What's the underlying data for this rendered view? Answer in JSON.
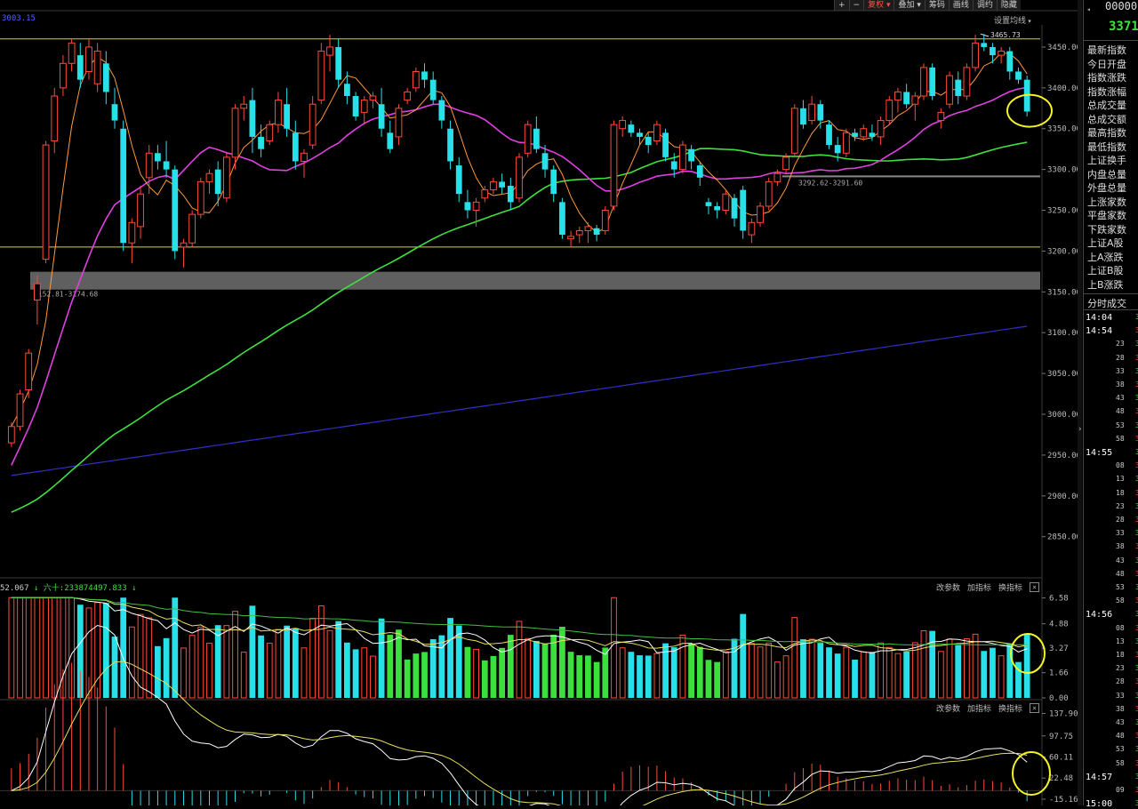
{
  "toolbar": {
    "buttons": [
      "+",
      "−",
      "复权",
      "叠加",
      "筹码",
      "画线",
      "调约",
      "隐藏"
    ]
  },
  "main_chart": {
    "top_left_value": "3003.15",
    "setting_label": "设置均线",
    "hi_label": "3465.73",
    "range_label_1": "3292.62-3291.60",
    "range_label_2": "3152.81-3174.68"
  },
  "volume_panel": {
    "header_value": "52.067",
    "header_mid": "六十:233874497.833",
    "buttons": [
      "改参数",
      "加指标",
      "换指标"
    ],
    "close": "×"
  },
  "macd_panel": {
    "buttons": [
      "改参数",
      "加指标",
      "换指标"
    ],
    "close": "×"
  },
  "side_panel": {
    "code": "00000",
    "price": "3371",
    "fields": [
      "最新指数",
      "今日开盘",
      "指数涨跌",
      "指数涨幅",
      "总成交量",
      "总成交额",
      "最高指数",
      "最低指数",
      "上证换手",
      "内盘总量",
      "外盘总量",
      "上涨家数",
      "平盘家数",
      "下跌家数",
      "上证A股",
      "上A涨跌",
      "上证B股",
      "上B涨跌"
    ],
    "section_title": "分时成交",
    "times": [
      {
        "t": "14:04",
        "major": true
      },
      {
        "t": "14:54",
        "major": true
      },
      {
        "t": "23"
      },
      {
        "t": "28"
      },
      {
        "t": "33"
      },
      {
        "t": "38"
      },
      {
        "t": "43"
      },
      {
        "t": "48"
      },
      {
        "t": "53"
      },
      {
        "t": "58"
      },
      {
        "t": "14:55",
        "major": true
      },
      {
        "t": "08"
      },
      {
        "t": "13"
      },
      {
        "t": "18"
      },
      {
        "t": "23"
      },
      {
        "t": "28"
      },
      {
        "t": "33"
      },
      {
        "t": "38"
      },
      {
        "t": "43"
      },
      {
        "t": "48"
      },
      {
        "t": "53"
      },
      {
        "t": "58"
      },
      {
        "t": "14:56",
        "major": true
      },
      {
        "t": "08"
      },
      {
        "t": "13"
      },
      {
        "t": "18"
      },
      {
        "t": "23"
      },
      {
        "t": "28"
      },
      {
        "t": "33"
      },
      {
        "t": "38"
      },
      {
        "t": "43"
      },
      {
        "t": "48"
      },
      {
        "t": "53"
      },
      {
        "t": "58"
      },
      {
        "t": "14:57",
        "major": true
      },
      {
        "t": "09"
      },
      {
        "t": "15:00",
        "major": true
      }
    ],
    "tick_value": "3"
  },
  "chart_data": [
    {
      "type": "candlestick",
      "y_ticks": [
        3450,
        3400,
        3350,
        3300,
        3250,
        3200,
        3150,
        3100,
        3050,
        3000,
        2950,
        2900,
        2850
      ],
      "ylim": [
        2805,
        3475
      ],
      "annotations": [
        3465.73,
        "3292.62-3291.60",
        "3152.81-3174.68"
      ],
      "reference_lines": [
        3460,
        3205,
        3291
      ],
      "candles_ohlc": [
        [
          2965,
          2990,
          2960,
          2985
        ],
        [
          2985,
          3030,
          2980,
          3025
        ],
        [
          3030,
          3080,
          3020,
          3075
        ],
        [
          3140,
          3170,
          3110,
          3160
        ],
        [
          3190,
          3335,
          3185,
          3330
        ],
        [
          3335,
          3400,
          3320,
          3390
        ],
        [
          3400,
          3440,
          3390,
          3430
        ],
        [
          3430,
          3460,
          3420,
          3455
        ],
        [
          3440,
          3455,
          3400,
          3410
        ],
        [
          3420,
          3460,
          3410,
          3450
        ],
        [
          3405,
          3455,
          3395,
          3445
        ],
        [
          3430,
          3445,
          3380,
          3395
        ],
        [
          3380,
          3400,
          3350,
          3360
        ],
        [
          3350,
          3360,
          3200,
          3210
        ],
        [
          3210,
          3240,
          3185,
          3235
        ],
        [
          3230,
          3280,
          3215,
          3270
        ],
        [
          3290,
          3330,
          3270,
          3320
        ],
        [
          3320,
          3330,
          3300,
          3310
        ],
        [
          3310,
          3335,
          3290,
          3300
        ],
        [
          3300,
          3305,
          3190,
          3200
        ],
        [
          3205,
          3215,
          3180,
          3210
        ],
        [
          3210,
          3250,
          3205,
          3245
        ],
        [
          3245,
          3290,
          3240,
          3285
        ],
        [
          3285,
          3300,
          3270,
          3295
        ],
        [
          3300,
          3310,
          3255,
          3270
        ],
        [
          3265,
          3320,
          3260,
          3315
        ],
        [
          3315,
          3380,
          3300,
          3375
        ],
        [
          3375,
          3390,
          3360,
          3380
        ],
        [
          3385,
          3400,
          3320,
          3340
        ],
        [
          3340,
          3355,
          3315,
          3325
        ],
        [
          3335,
          3360,
          3330,
          3355
        ],
        [
          3355,
          3395,
          3345,
          3385
        ],
        [
          3380,
          3400,
          3340,
          3350
        ],
        [
          3345,
          3360,
          3300,
          3310
        ],
        [
          3310,
          3325,
          3290,
          3320
        ],
        [
          3330,
          3390,
          3325,
          3380
        ],
        [
          3385,
          3455,
          3380,
          3445
        ],
        [
          3440,
          3465,
          3420,
          3450
        ],
        [
          3450,
          3460,
          3400,
          3410
        ],
        [
          3405,
          3420,
          3380,
          3390
        ],
        [
          3390,
          3395,
          3360,
          3365
        ],
        [
          3370,
          3390,
          3355,
          3385
        ],
        [
          3385,
          3395,
          3375,
          3390
        ],
        [
          3380,
          3400,
          3340,
          3350
        ],
        [
          3345,
          3360,
          3320,
          3325
        ],
        [
          3340,
          3380,
          3330,
          3375
        ],
        [
          3385,
          3400,
          3380,
          3395
        ],
        [
          3400,
          3425,
          3395,
          3420
        ],
        [
          3420,
          3430,
          3400,
          3410
        ],
        [
          3410,
          3420,
          3380,
          3385
        ],
        [
          3385,
          3390,
          3350,
          3360
        ],
        [
          3350,
          3360,
          3300,
          3310
        ],
        [
          3305,
          3315,
          3260,
          3270
        ],
        [
          3260,
          3275,
          3240,
          3250
        ],
        [
          3250,
          3265,
          3230,
          3260
        ],
        [
          3265,
          3280,
          3260,
          3275
        ],
        [
          3275,
          3290,
          3270,
          3285
        ],
        [
          3285,
          3295,
          3270,
          3278
        ],
        [
          3280,
          3290,
          3250,
          3260
        ],
        [
          3265,
          3320,
          3260,
          3315
        ],
        [
          3320,
          3360,
          3315,
          3355
        ],
        [
          3350,
          3365,
          3320,
          3325
        ],
        [
          3320,
          3330,
          3290,
          3300
        ],
        [
          3300,
          3305,
          3260,
          3270
        ],
        [
          3260,
          3265,
          3215,
          3220
        ],
        [
          3215,
          3225,
          3205,
          3218
        ],
        [
          3220,
          3230,
          3210,
          3225
        ],
        [
          3225,
          3235,
          3210,
          3230
        ],
        [
          3228,
          3232,
          3212,
          3220
        ],
        [
          3225,
          3255,
          3220,
          3250
        ],
        [
          3255,
          3360,
          3250,
          3355
        ],
        [
          3350,
          3365,
          3340,
          3360
        ],
        [
          3355,
          3360,
          3340,
          3345
        ],
        [
          3345,
          3350,
          3330,
          3340
        ],
        [
          3340,
          3345,
          3320,
          3330
        ],
        [
          3335,
          3360,
          3330,
          3355
        ],
        [
          3345,
          3350,
          3310,
          3315
        ],
        [
          3310,
          3320,
          3290,
          3300
        ],
        [
          3300,
          3335,
          3295,
          3330
        ],
        [
          3325,
          3330,
          3300,
          3310
        ],
        [
          3305,
          3310,
          3280,
          3290
        ],
        [
          3260,
          3265,
          3245,
          3255
        ],
        [
          3255,
          3260,
          3240,
          3250
        ],
        [
          3250,
          3275,
          3245,
          3270
        ],
        [
          3265,
          3270,
          3230,
          3240
        ],
        [
          3275,
          3280,
          3215,
          3225
        ],
        [
          3220,
          3240,
          3210,
          3235
        ],
        [
          3235,
          3260,
          3230,
          3255
        ],
        [
          3255,
          3290,
          3250,
          3285
        ],
        [
          3285,
          3300,
          3280,
          3295
        ],
        [
          3300,
          3320,
          3295,
          3315
        ],
        [
          3320,
          3380,
          3315,
          3375
        ],
        [
          3375,
          3385,
          3350,
          3355
        ],
        [
          3360,
          3390,
          3355,
          3380
        ],
        [
          3380,
          3385,
          3350,
          3360
        ],
        [
          3355,
          3360,
          3325,
          3330
        ],
        [
          3330,
          3340,
          3310,
          3320
        ],
        [
          3320,
          3350,
          3315,
          3345
        ],
        [
          3345,
          3350,
          3335,
          3340
        ],
        [
          3340,
          3355,
          3335,
          3350
        ],
        [
          3345,
          3355,
          3335,
          3340
        ],
        [
          3340,
          3365,
          3330,
          3360
        ],
        [
          3360,
          3390,
          3355,
          3385
        ],
        [
          3385,
          3400,
          3370,
          3395
        ],
        [
          3395,
          3405,
          3375,
          3380
        ],
        [
          3380,
          3395,
          3360,
          3390
        ],
        [
          3390,
          3430,
          3385,
          3425
        ],
        [
          3425,
          3430,
          3385,
          3390
        ],
        [
          3360,
          3375,
          3350,
          3370
        ],
        [
          3380,
          3420,
          3375,
          3415
        ],
        [
          3410,
          3420,
          3380,
          3390
        ],
        [
          3390,
          3430,
          3385,
          3425
        ],
        [
          3425,
          3465,
          3420,
          3455
        ],
        [
          3455,
          3466,
          3445,
          3450
        ],
        [
          3450,
          3455,
          3430,
          3440
        ],
        [
          3440,
          3450,
          3430,
          3445
        ],
        [
          3445,
          3450,
          3410,
          3420
        ],
        [
          3420,
          3425,
          3405,
          3410
        ],
        [
          3410,
          3415,
          3365,
          3371
        ]
      ],
      "ma_series": [
        {
          "color": "#ff9a3c",
          "kind": "MA5"
        },
        {
          "color": "#e040e0",
          "kind": "MA20"
        },
        {
          "color": "#40e040",
          "kind": "MA60"
        },
        {
          "color": "#3030c8",
          "kind": "MA250"
        }
      ]
    },
    {
      "type": "bar",
      "y_ticks": [
        6.58,
        4.88,
        3.27,
        1.66,
        0.0
      ],
      "ylim": [
        0,
        7.2
      ]
    },
    {
      "type": "bar",
      "y_ticks": [
        137.9,
        97.75,
        60.11,
        22.48,
        -15.16
      ],
      "ylim": [
        -20,
        145
      ]
    }
  ],
  "colors": {
    "up": "#ff4a3a",
    "down": "#28e0e8",
    "vol_green": "#3ce03c",
    "ma5": "#ff9a3c",
    "ma20": "#e040e0",
    "ma60": "#40e040",
    "ma250": "#3030c8",
    "highlight": "#f5f522",
    "hline": "#d8d820"
  }
}
